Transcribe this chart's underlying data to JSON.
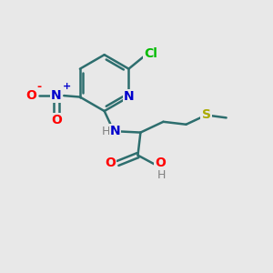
{
  "background_color": "#e8e8e8",
  "bond_color": "#2d6e6e",
  "colors": {
    "N": "#0000cc",
    "O": "#ff0000",
    "S": "#aaaa00",
    "Cl": "#00bb00",
    "C": "#2d6e6e",
    "H": "#808080"
  },
  "figsize": [
    3.0,
    3.0
  ],
  "dpi": 100
}
